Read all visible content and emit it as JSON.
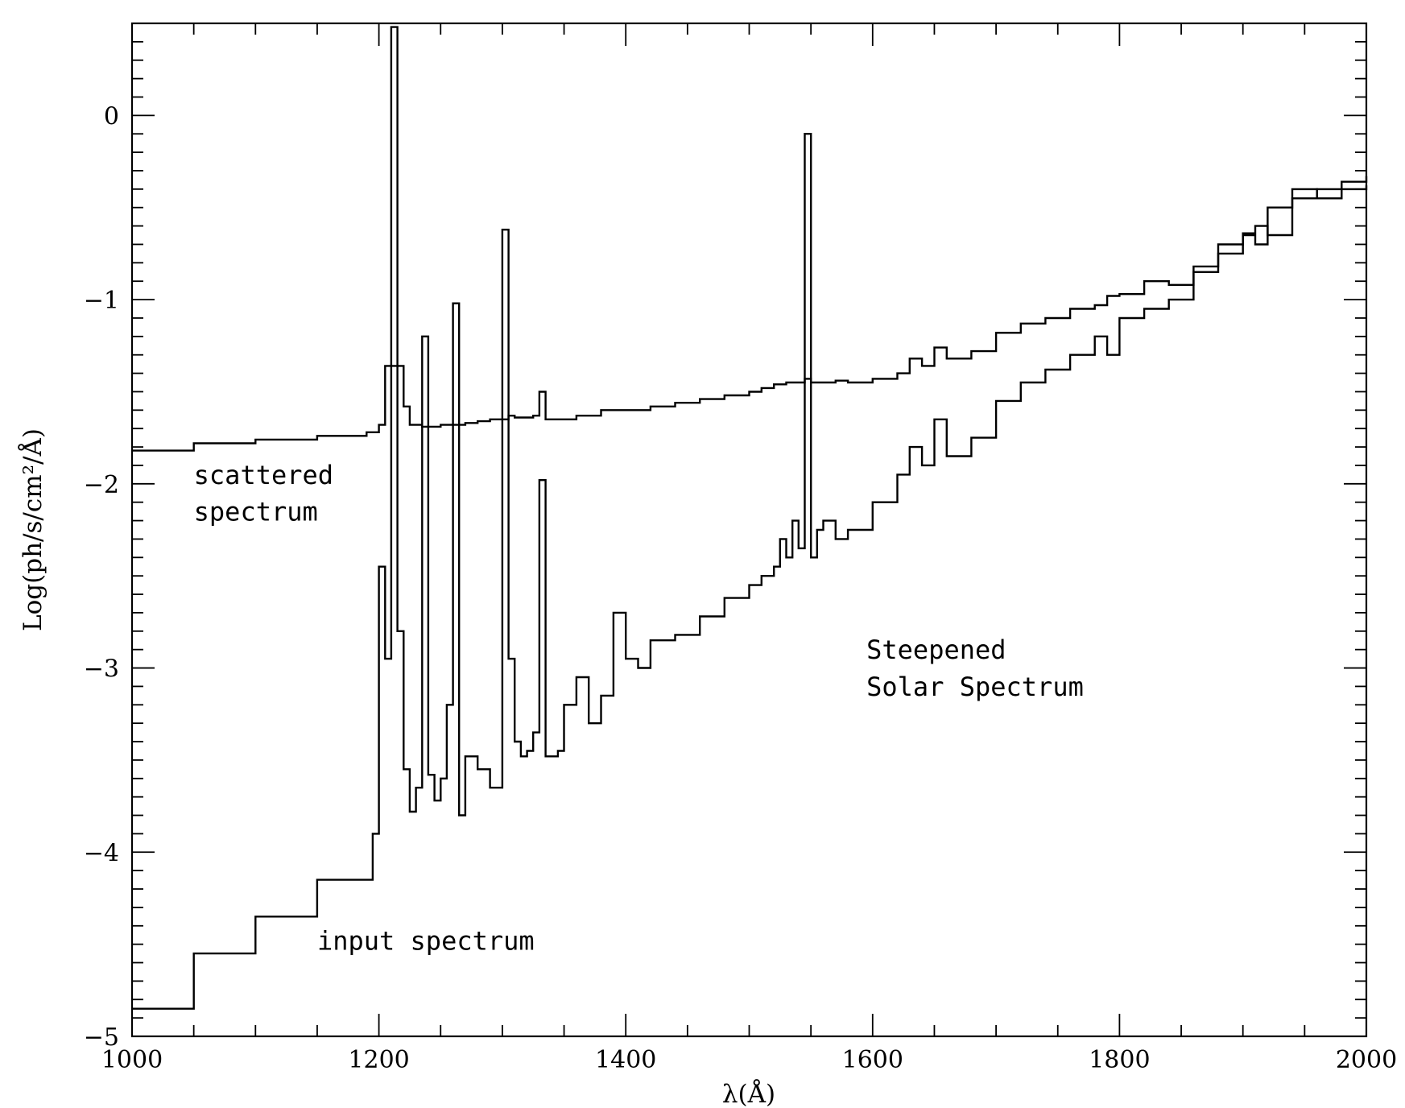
{
  "chart_data": {
    "type": "line",
    "title": "",
    "xlabel": "λ(Å)",
    "ylabel": "Log(ph/s/cm²/Å)",
    "xlim": [
      1000,
      2000
    ],
    "ylim": [
      -5,
      0.5
    ],
    "x_ticks": [
      1000,
      1200,
      1400,
      1600,
      1800,
      2000
    ],
    "x_tick_labels": [
      "1000",
      "1200",
      "1400",
      "1600",
      "1800",
      "2000"
    ],
    "y_ticks": [
      -5,
      -4,
      -3,
      -2,
      -1,
      0
    ],
    "y_tick_labels": [
      "−5",
      "−4",
      "−3",
      "−2",
      "−1",
      "0"
    ],
    "grid": false,
    "legend": "none",
    "colors": {
      "line": "#000000",
      "background": "#ffffff"
    },
    "annotations": [
      {
        "text": "scattered",
        "x": 1050,
        "y": -2.0
      },
      {
        "text": "spectrum",
        "x": 1050,
        "y": -2.2
      },
      {
        "text": "Steepened",
        "x": 1595,
        "y": -2.95
      },
      {
        "text": "Solar Spectrum",
        "x": 1595,
        "y": -3.15
      },
      {
        "text": "input spectrum",
        "x": 1150,
        "y": -4.53
      }
    ],
    "series": [
      {
        "style": "step",
        "x": [
          1000,
          1050,
          1100,
          1150,
          1190,
          1200,
          1205,
          1210,
          1215,
          1220,
          1225,
          1230,
          1235,
          1240,
          1245,
          1250,
          1260,
          1265,
          1270,
          1280,
          1290,
          1300,
          1305,
          1310,
          1320,
          1325,
          1330,
          1335,
          1340,
          1360,
          1380,
          1390,
          1400,
          1420,
          1440,
          1460,
          1480,
          1500,
          1510,
          1520,
          1530,
          1540,
          1545,
          1550,
          1560,
          1570,
          1580,
          1600,
          1620,
          1630,
          1640,
          1650,
          1660,
          1680,
          1700,
          1720,
          1740,
          1760,
          1780,
          1790,
          1800,
          1820,
          1840,
          1860,
          1880,
          1900,
          1910,
          1920,
          1940,
          1960,
          1980,
          2000
        ],
        "y": [
          -1.82,
          -1.78,
          -1.76,
          -1.74,
          -1.72,
          -1.68,
          -1.36,
          -1.36,
          -1.36,
          -1.58,
          -1.68,
          -1.68,
          -1.69,
          -1.69,
          -1.69,
          -1.68,
          -1.68,
          -1.68,
          -1.67,
          -1.66,
          -1.65,
          -1.65,
          -1.63,
          -1.64,
          -1.64,
          -1.63,
          -1.5,
          -1.65,
          -1.65,
          -1.63,
          -1.6,
          -1.6,
          -1.6,
          -1.58,
          -1.56,
          -1.54,
          -1.52,
          -1.5,
          -1.48,
          -1.46,
          -1.45,
          -1.45,
          -1.43,
          -1.45,
          -1.45,
          -1.44,
          -1.45,
          -1.43,
          -1.4,
          -1.32,
          -1.36,
          -1.26,
          -1.32,
          -1.28,
          -1.18,
          -1.13,
          -1.1,
          -1.05,
          -1.03,
          -0.98,
          -0.97,
          -0.9,
          -0.92,
          -0.82,
          -0.7,
          -0.64,
          -0.6,
          -0.65,
          -0.45,
          -0.4,
          -0.36,
          -0.33
        ]
      },
      {
        "style": "step",
        "x": [
          1000,
          1050,
          1100,
          1150,
          1195,
          1200,
          1205,
          1210,
          1215,
          1220,
          1225,
          1230,
          1235,
          1240,
          1245,
          1250,
          1255,
          1260,
          1265,
          1270,
          1280,
          1290,
          1300,
          1305,
          1310,
          1315,
          1320,
          1325,
          1330,
          1335,
          1340,
          1345,
          1350,
          1360,
          1370,
          1380,
          1390,
          1400,
          1410,
          1420,
          1440,
          1460,
          1480,
          1500,
          1510,
          1520,
          1525,
          1530,
          1535,
          1540,
          1545,
          1550,
          1555,
          1560,
          1570,
          1580,
          1600,
          1620,
          1630,
          1640,
          1650,
          1660,
          1680,
          1700,
          1720,
          1740,
          1760,
          1780,
          1790,
          1800,
          1820,
          1840,
          1860,
          1880,
          1900,
          1910,
          1920,
          1940,
          1960,
          1980,
          2000
        ],
        "y": [
          -4.85,
          -4.55,
          -4.35,
          -4.15,
          -3.9,
          -2.45,
          -2.95,
          0.48,
          -2.8,
          -3.55,
          -3.78,
          -3.65,
          -1.2,
          -3.58,
          -3.72,
          -3.6,
          -3.2,
          -1.02,
          -3.8,
          -3.48,
          -3.55,
          -3.65,
          -0.62,
          -2.95,
          -3.4,
          -3.48,
          -3.45,
          -3.35,
          -1.98,
          -3.48,
          -3.48,
          -3.45,
          -3.2,
          -3.05,
          -3.3,
          -3.15,
          -2.7,
          -2.95,
          -3.0,
          -2.85,
          -2.82,
          -2.72,
          -2.62,
          -2.55,
          -2.5,
          -2.45,
          -2.3,
          -2.4,
          -2.2,
          -2.35,
          -0.1,
          -2.4,
          -2.25,
          -2.2,
          -2.3,
          -2.25,
          -2.1,
          -1.95,
          -1.8,
          -1.9,
          -1.65,
          -1.85,
          -1.75,
          -1.55,
          -1.45,
          -1.38,
          -1.3,
          -1.2,
          -1.3,
          -1.1,
          -1.05,
          -1.0,
          -0.85,
          -0.75,
          -0.65,
          -0.7,
          -0.5,
          -0.4,
          -0.45,
          -0.4,
          -0.38
        ]
      }
    ]
  }
}
